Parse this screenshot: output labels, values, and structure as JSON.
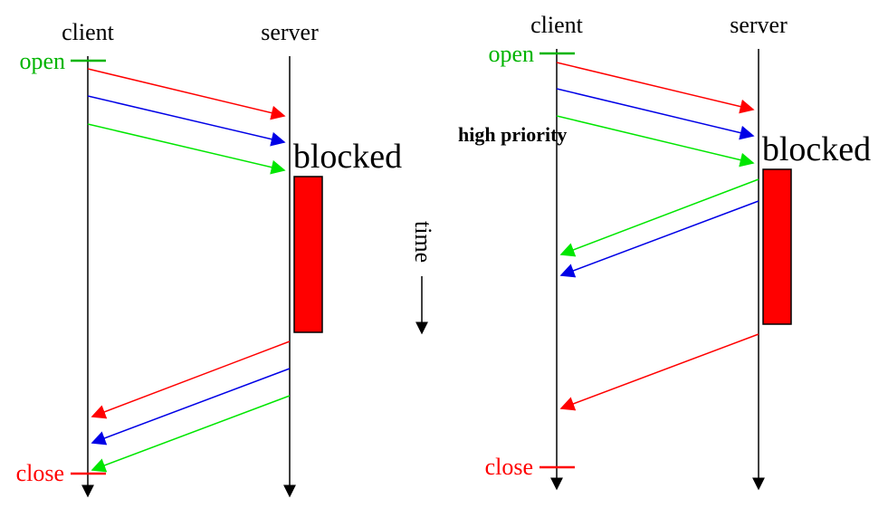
{
  "diagram": {
    "time_label": "time",
    "left": {
      "client_label": "client",
      "server_label": "server",
      "open_label": "open",
      "close_label": "close",
      "blocked_label": "blocked"
    },
    "right": {
      "client_label": "client",
      "server_label": "server",
      "open_label": "open",
      "close_label": "close",
      "blocked_label": "blocked",
      "priority_label": "high priority"
    }
  },
  "colors": {
    "open": "#00b400",
    "close": "#ff0000",
    "red": "#ff0000",
    "blue": "#0000e6",
    "green": "#00e600",
    "timeline": "#000000",
    "block_fill": "#ff0000"
  }
}
